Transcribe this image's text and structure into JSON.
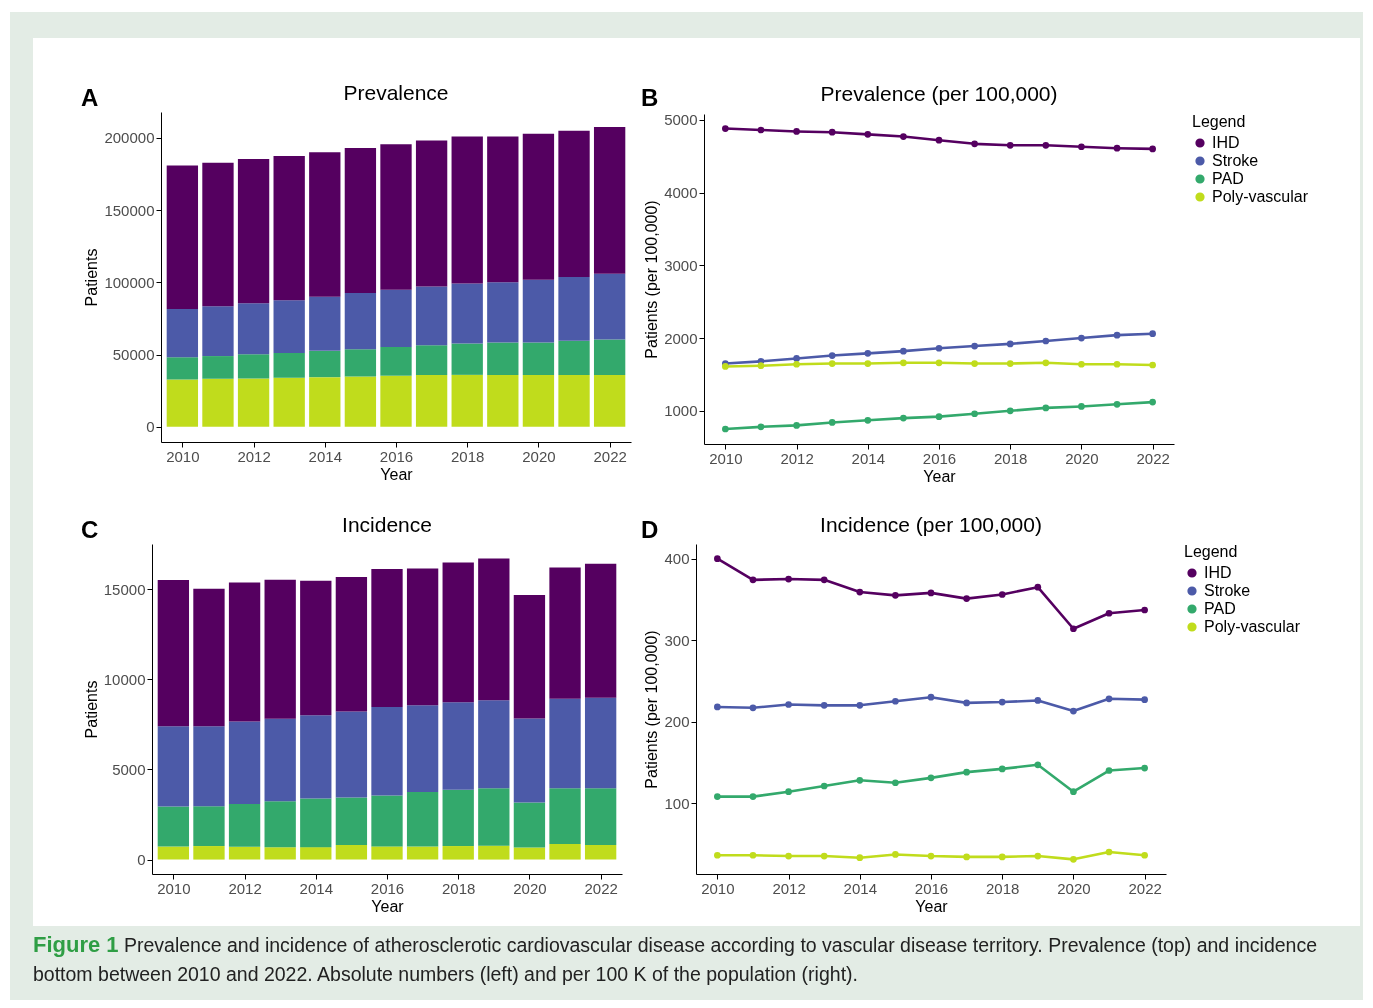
{
  "chart_data": [
    {
      "type": "bar",
      "title": "Prevalence",
      "xlabel": "Year",
      "ylabel": "Patients",
      "stacked": true,
      "annotations": [
        "A"
      ],
      "x": [
        2010,
        2011,
        2012,
        2013,
        2014,
        2015,
        2016,
        2017,
        2018,
        2019,
        2020,
        2021,
        2022
      ],
      "xlim": [
        2009.4,
        2022.6
      ],
      "xticks": [
        2010,
        2012,
        2014,
        2016,
        2018,
        2020,
        2022
      ],
      "ylim": [
        -10500,
        218000
      ],
      "yticks": [
        0,
        50000,
        100000,
        150000,
        200000
      ],
      "series": [
        {
          "color": "#c0dc1c",
          "values": [
            32800,
            33300,
            33500,
            34000,
            34400,
            34900,
            35400,
            35900,
            36000,
            35900,
            35900,
            35900,
            35900
          ]
        },
        {
          "color": "#33a96c",
          "values": [
            15300,
            15700,
            16700,
            17200,
            18200,
            18900,
            19900,
            20600,
            21700,
            22500,
            22500,
            23700,
            24600
          ]
        },
        {
          "color": "#4c5aa8",
          "values": [
            33500,
            34500,
            35400,
            36400,
            37400,
            38800,
            39700,
            40600,
            41600,
            41800,
            43500,
            44200,
            45500
          ]
        },
        {
          "color": "#550060",
          "values": [
            99300,
            99300,
            99800,
            100000,
            100200,
            100500,
            100700,
            101200,
            101700,
            100800,
            101000,
            101200,
            101700
          ]
        }
      ]
    },
    {
      "type": "line",
      "title": "Prevalence (per 100,000)",
      "xlabel": "Year",
      "ylabel": "Patients (per 100,000)",
      "legend": "right",
      "legend_title": "Legend",
      "marker": "circle",
      "annotations": [
        "B"
      ],
      "x": [
        2010,
        2011,
        2012,
        2013,
        2014,
        2015,
        2016,
        2017,
        2018,
        2019,
        2020,
        2021,
        2022
      ],
      "xlim": [
        2009.4,
        2022.6
      ],
      "xticks": [
        2010,
        2012,
        2014,
        2016,
        2018,
        2020,
        2022
      ],
      "ylim": [
        544,
        5080
      ],
      "yticks": [
        1000,
        2000,
        3000,
        4000,
        5000
      ],
      "series": [
        {
          "name": "IHD",
          "color": "#550060",
          "values": [
            4880,
            4860,
            4840,
            4830,
            4800,
            4770,
            4720,
            4670,
            4650,
            4650,
            4630,
            4610,
            4600
          ]
        },
        {
          "name": "Stroke",
          "color": "#4c5aa8",
          "values": [
            1650,
            1680,
            1720,
            1760,
            1790,
            1820,
            1860,
            1890,
            1920,
            1960,
            2000,
            2040,
            2060
          ]
        },
        {
          "name": "PAD",
          "color": "#33a96c",
          "values": [
            750,
            780,
            800,
            840,
            870,
            900,
            920,
            960,
            1000,
            1040,
            1060,
            1090,
            1120
          ]
        },
        {
          "name": "Poly-vascular",
          "color": "#c0dc1c",
          "values": [
            1610,
            1620,
            1640,
            1650,
            1650,
            1660,
            1660,
            1650,
            1650,
            1660,
            1640,
            1640,
            1630
          ]
        }
      ]
    },
    {
      "type": "bar",
      "title": "Incidence",
      "xlabel": "Year",
      "ylabel": "Patients",
      "stacked": true,
      "annotations": [
        "C"
      ],
      "x": [
        2010,
        2011,
        2012,
        2013,
        2014,
        2015,
        2016,
        2017,
        2018,
        2019,
        2020,
        2021,
        2022
      ],
      "xlim": [
        2009.4,
        2022.6
      ],
      "xticks": [
        2010,
        2012,
        2014,
        2016,
        2018,
        2020,
        2022
      ],
      "ylim": [
        -800,
        17500
      ],
      "yticks": [
        0,
        5000,
        10000,
        15000
      ],
      "series": [
        {
          "color": "#c0dc1c",
          "values": [
            730,
            750,
            710,
            690,
            690,
            810,
            730,
            730,
            750,
            770,
            670,
            870,
            810
          ]
        },
        {
          "color": "#33a96c",
          "values": [
            2210,
            2210,
            2370,
            2540,
            2700,
            2630,
            2830,
            3020,
            3120,
            3190,
            2500,
            3090,
            3150
          ]
        },
        {
          "color": "#4c5aa8",
          "values": [
            4450,
            4430,
            4570,
            4580,
            4610,
            4770,
            4900,
            4810,
            4860,
            4870,
            4660,
            4960,
            5020
          ]
        },
        {
          "color": "#550060",
          "values": [
            8110,
            7630,
            7720,
            7710,
            7460,
            7460,
            7660,
            7580,
            7750,
            7860,
            6840,
            7270,
            7420
          ]
        }
      ]
    },
    {
      "type": "line",
      "title": "Incidence (per 100,000)",
      "xlabel": "Year",
      "ylabel": "Patients (per 100,000)",
      "legend": "right",
      "legend_title": "Legend",
      "marker": "circle",
      "annotations": [
        "D",
        "Figure 1",
        "Prevalence and incidence of atherosclerotic cardiovascular disease according to vascular disease territory. Prevalence (top) and incidence bottom between 2010 and 2022. Absolute numbers (left) and per 100 K of the population (right)."
      ],
      "x": [
        2010,
        2011,
        2012,
        2013,
        2014,
        2015,
        2016,
        2017,
        2018,
        2019,
        2020,
        2021,
        2022
      ],
      "xlim": [
        2009.4,
        2022.6
      ],
      "xticks": [
        2010,
        2012,
        2014,
        2016,
        2018,
        2020,
        2022
      ],
      "ylim": [
        13,
        418
      ],
      "yticks": [
        100,
        200,
        300,
        400
      ],
      "series": [
        {
          "name": "IHD",
          "color": "#550060",
          "values": [
            400,
            374,
            375,
            374,
            359,
            355,
            358,
            351,
            356,
            365,
            314,
            333,
            337
          ]
        },
        {
          "name": "Stroke",
          "color": "#4c5aa8",
          "values": [
            218,
            217,
            221,
            220,
            220,
            225,
            230,
            223,
            224,
            226,
            213,
            228,
            227
          ]
        },
        {
          "name": "PAD",
          "color": "#33a96c",
          "values": [
            108,
            108,
            114,
            121,
            128,
            125,
            131,
            138,
            142,
            147,
            114,
            140,
            143
          ]
        },
        {
          "name": "Poly-vascular",
          "color": "#c0dc1c",
          "values": [
            36,
            36,
            35,
            35,
            33,
            37,
            35,
            34,
            34,
            35,
            31,
            40,
            36
          ]
        }
      ]
    }
  ]
}
